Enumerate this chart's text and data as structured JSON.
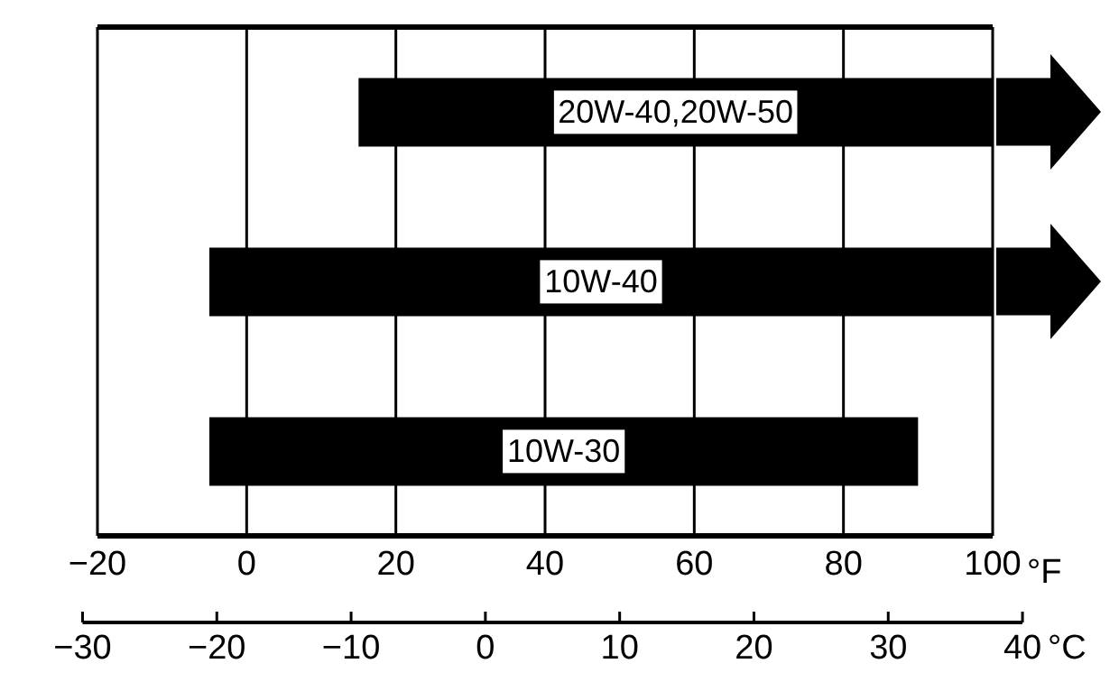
{
  "chart_data": {
    "type": "bar",
    "orientation": "horizontal",
    "categories": [
      "20W-40,20W-50",
      "10W-40",
      "10W-30"
    ],
    "base": [
      15,
      -5,
      -5
    ],
    "values": [
      85,
      105,
      95
    ],
    "color": "#000000",
    "xlim": [
      -20,
      100
    ],
    "xticks": [
      -20,
      0,
      20,
      40,
      60,
      80,
      100
    ],
    "xlabel": "°F",
    "x2lim": [
      -30,
      40
    ],
    "x2ticks": [
      -30,
      -20,
      -10,
      0,
      10,
      20,
      30,
      40
    ],
    "x2label": "°C",
    "grid": "x"
  }
}
